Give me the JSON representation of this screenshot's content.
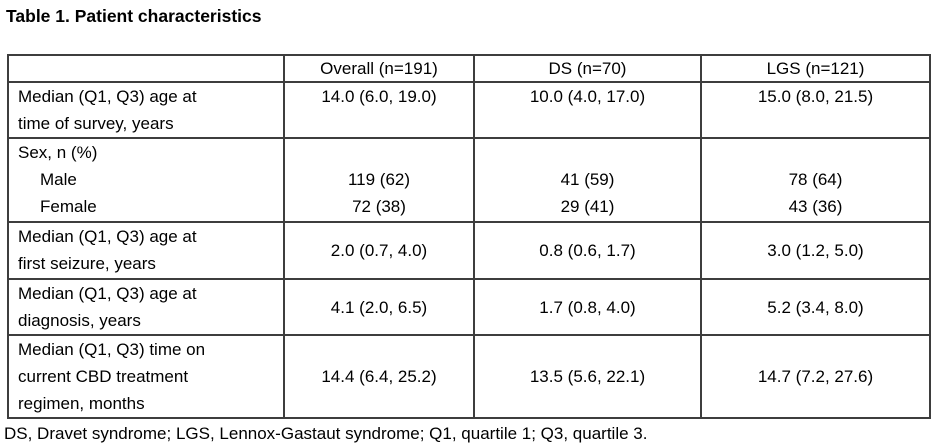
{
  "title": "Table 1. Patient characteristics",
  "table": {
    "header": [
      "",
      "Overall (n=191)",
      "DS (n=70)",
      "LGS (n=121)"
    ],
    "rows": [
      {
        "label": "Median (Q1, Q3) age at\ntime of survey, years",
        "values": [
          "14.0 (6.0, 19.0)",
          "10.0 (4.0, 17.0)",
          "15.0 (8.0, 21.5)"
        ]
      },
      {
        "label": "Sex, n (%)",
        "subrows": [
          {
            "label": "Male",
            "values": [
              "119 (62)",
              "41 (59)",
              "78 (64)"
            ]
          },
          {
            "label": "Female",
            "values": [
              "72 (38)",
              "29 (41)",
              "43 (36)"
            ]
          }
        ]
      },
      {
        "label": "Median (Q1, Q3) age at\nfirst seizure, years",
        "values": [
          "2.0 (0.7, 4.0)",
          "0.8 (0.6, 1.7)",
          "3.0 (1.2, 5.0)"
        ]
      },
      {
        "label": "Median (Q1, Q3) age at\ndiagnosis, years",
        "values": [
          "4.1 (2.0, 6.5)",
          "1.7 (0.8, 4.0)",
          "5.2 (3.4, 8.0)"
        ]
      },
      {
        "label": "Median (Q1, Q3) time on\ncurrent CBD treatment\nregimen, months",
        "values": [
          "14.4 (6.4, 25.2)",
          "13.5 (5.6, 22.1)",
          "14.7 (7.2, 27.6)"
        ]
      }
    ]
  },
  "footnote": "DS, Dravet syndrome; LGS, Lennox-Gastaut syndrome; Q1, quartile 1; Q3, quartile 3."
}
